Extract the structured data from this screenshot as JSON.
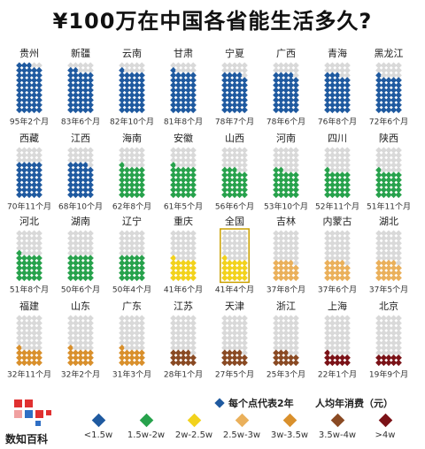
{
  "title": "¥100万在中国各省能生活多久?",
  "legend_dot_note": "每个点代表2年",
  "legend_spend_note": "人均年消费（元）",
  "brand": "数知百科",
  "colors": {
    "blue": "#1f5aa0",
    "green": "#27a24c",
    "yellow": "#f2d21c",
    "light_orange": "#eab05b",
    "orange": "#d9902c",
    "brown": "#8a4a23",
    "dark_red": "#7b1217",
    "empty": "#d9d9d9",
    "brand_red": "#e03030",
    "brand_blue": "#2f6fc4"
  },
  "legend": [
    {
      "label": "<1.5w",
      "color": "#1f5aa0"
    },
    {
      "label": "1.5w-2w",
      "color": "#27a24c"
    },
    {
      "label": "2w-2.5w",
      "color": "#f2d21c"
    },
    {
      "label": "2.5w-3w",
      "color": "#eab05b"
    },
    {
      "label": "3w-3.5w",
      "color": "#d9902c"
    },
    {
      "label": "3.5w-4w",
      "color": "#8a4a23"
    },
    {
      "label": ">4w",
      "color": "#7b1217"
    }
  ],
  "chart_data": {
    "type": "table",
    "unit_per_dot": "2年",
    "provinces": [
      {
        "name": "贵州",
        "duration": "95年2个月",
        "years": 95.2,
        "band": "<1.5w"
      },
      {
        "name": "新疆",
        "duration": "83年6个月",
        "years": 83.5,
        "band": "<1.5w"
      },
      {
        "name": "云南",
        "duration": "82年10个月",
        "years": 82.8,
        "band": "<1.5w"
      },
      {
        "name": "甘肃",
        "duration": "81年8个月",
        "years": 81.7,
        "band": "<1.5w"
      },
      {
        "name": "宁夏",
        "duration": "78年7个月",
        "years": 78.6,
        "band": "<1.5w"
      },
      {
        "name": "广西",
        "duration": "78年6个月",
        "years": 78.5,
        "band": "<1.5w"
      },
      {
        "name": "青海",
        "duration": "76年8个月",
        "years": 76.7,
        "band": "<1.5w"
      },
      {
        "name": "黑龙江",
        "duration": "72年6个月",
        "years": 72.5,
        "band": "<1.5w"
      },
      {
        "name": "西藏",
        "duration": "70年11个月",
        "years": 70.9,
        "band": "<1.5w"
      },
      {
        "name": "江西",
        "duration": "68年10个月",
        "years": 68.8,
        "band": "<1.5w"
      },
      {
        "name": "海南",
        "duration": "62年8个月",
        "years": 62.7,
        "band": "1.5w-2w"
      },
      {
        "name": "安徽",
        "duration": "61年5个月",
        "years": 61.4,
        "band": "1.5w-2w"
      },
      {
        "name": "山西",
        "duration": "56年6个月",
        "years": 56.5,
        "band": "1.5w-2w"
      },
      {
        "name": "河南",
        "duration": "53年10个月",
        "years": 53.8,
        "band": "1.5w-2w"
      },
      {
        "name": "四川",
        "duration": "52年11个月",
        "years": 52.9,
        "band": "1.5w-2w"
      },
      {
        "name": "陕西",
        "duration": "51年11个月",
        "years": 51.9,
        "band": "1.5w-2w"
      },
      {
        "name": "河北",
        "duration": "51年8个月",
        "years": 51.7,
        "band": "1.5w-2w"
      },
      {
        "name": "湖南",
        "duration": "50年6个月",
        "years": 50.5,
        "band": "1.5w-2w"
      },
      {
        "name": "辽宁",
        "duration": "50年4个月",
        "years": 50.3,
        "band": "1.5w-2w"
      },
      {
        "name": "重庆",
        "duration": "41年6个月",
        "years": 41.5,
        "band": "2w-2.5w"
      },
      {
        "name": "全国",
        "duration": "41年4个月",
        "years": 41.3,
        "band": "2w-2.5w"
      },
      {
        "name": "吉林",
        "duration": "37年8个月",
        "years": 37.7,
        "band": "2.5w-3w"
      },
      {
        "name": "内蒙古",
        "duration": "37年6个月",
        "years": 37.5,
        "band": "2.5w-3w"
      },
      {
        "name": "湖北",
        "duration": "37年5个月",
        "years": 37.4,
        "band": "2.5w-3w"
      },
      {
        "name": "福建",
        "duration": "32年11个月",
        "years": 32.9,
        "band": "3w-3.5w"
      },
      {
        "name": "山东",
        "duration": "32年2个月",
        "years": 32.2,
        "band": "3w-3.5w"
      },
      {
        "name": "广东",
        "duration": "31年3个月",
        "years": 31.3,
        "band": "3w-3.5w"
      },
      {
        "name": "江苏",
        "duration": "28年1个月",
        "years": 28.1,
        "band": "3.5w-4w"
      },
      {
        "name": "天津",
        "duration": "27年5个月",
        "years": 27.4,
        "band": "3.5w-4w"
      },
      {
        "name": "浙江",
        "duration": "25年3个月",
        "years": 25.3,
        "band": "3.5w-4w"
      },
      {
        "name": "上海",
        "duration": "22年1个月",
        "years": 22.1,
        "band": ">4w"
      },
      {
        "name": "北京",
        "duration": "19年9个月",
        "years": 19.8,
        "band": ">4w"
      }
    ]
  }
}
